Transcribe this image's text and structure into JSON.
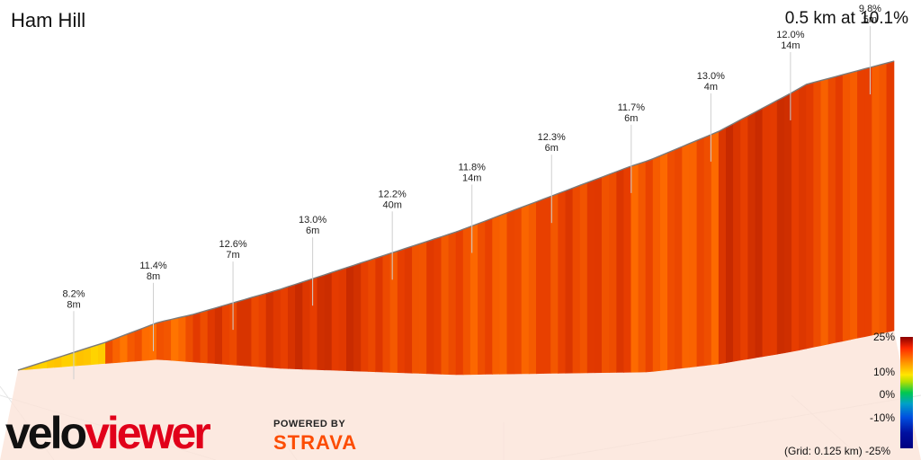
{
  "header": {
    "title": "Ham Hill",
    "summary": "0.5 km at 10.1%"
  },
  "chart_data": {
    "type": "area",
    "title": "Ham Hill",
    "subtitle": "0.5 km at 10.1%",
    "grid_note": "(Grid: 0.125 km)",
    "x_unit": "km",
    "y_unit": "m",
    "profile": {
      "x": [
        0.0,
        0.05,
        0.1,
        0.15,
        0.2,
        0.25,
        0.3,
        0.35,
        0.4,
        0.45,
        0.5
      ],
      "elevation": [
        0,
        4,
        9,
        15,
        21,
        27,
        33,
        39,
        44,
        50,
        51
      ],
      "segment_gradients": [
        8.2,
        11.4,
        12.6,
        13.0,
        12.2,
        11.8,
        12.3,
        11.7,
        13.0,
        12.0,
        9.8
      ]
    },
    "annotations": [
      {
        "grade": "8.2%",
        "length": "8m"
      },
      {
        "grade": "11.4%",
        "length": "8m"
      },
      {
        "grade": "12.6%",
        "length": "7m"
      },
      {
        "grade": "13.0%",
        "length": "6m"
      },
      {
        "grade": "12.2%",
        "length": "40m"
      },
      {
        "grade": "11.8%",
        "length": "14m"
      },
      {
        "grade": "12.3%",
        "length": "6m"
      },
      {
        "grade": "11.7%",
        "length": "6m"
      },
      {
        "grade": "13.0%",
        "length": "4m"
      },
      {
        "grade": "12.0%",
        "length": "14m"
      },
      {
        "grade": "9.8%",
        "length": "5m"
      }
    ],
    "color_scale": {
      "ticks": [
        "25%",
        "10%",
        "0%",
        "-10%",
        "-25%"
      ]
    }
  },
  "branding": {
    "logo_part1": "velo",
    "logo_part2": "viewer",
    "powered_by": "POWERED BY",
    "strava": "STRAVA"
  },
  "colors": {
    "accent": "#fc4c02",
    "brand_red": "#e1001a"
  }
}
